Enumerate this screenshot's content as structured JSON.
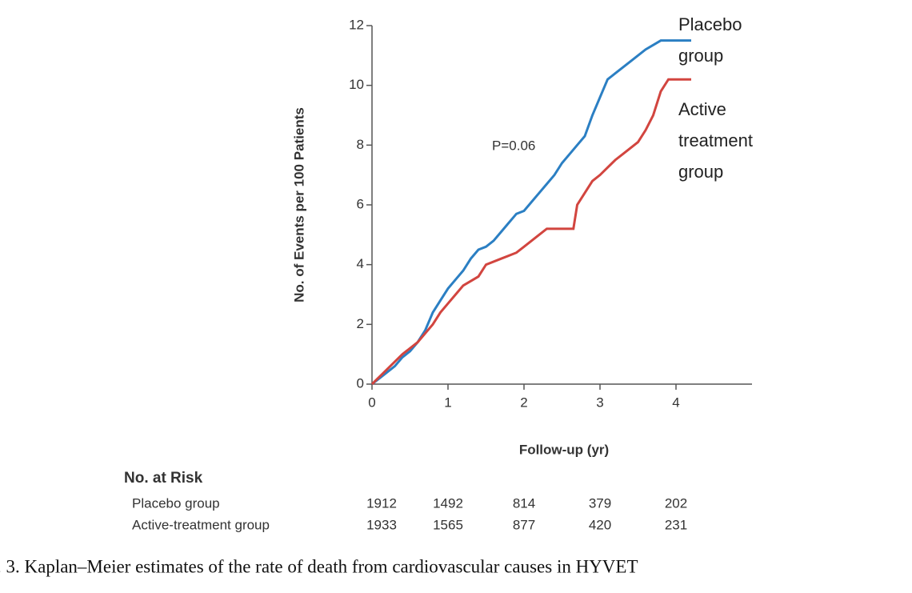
{
  "chart_data": {
    "type": "line",
    "y_label": "No. of Events per 100 Patients",
    "x_label": "Follow-up (yr)",
    "annotation": "P=0.06",
    "xlim": [
      0,
      5
    ],
    "xticks": [
      0,
      1,
      2,
      3,
      4
    ],
    "ylim": [
      0,
      12
    ],
    "yticks": [
      0,
      2,
      4,
      6,
      8,
      10,
      12
    ],
    "series": [
      {
        "name": "Placebo group",
        "color": "#2b7fc3",
        "x": [
          0,
          0.1,
          0.2,
          0.3,
          0.4,
          0.5,
          0.6,
          0.7,
          0.8,
          0.9,
          1.0,
          1.1,
          1.2,
          1.3,
          1.4,
          1.5,
          1.6,
          1.7,
          1.8,
          1.9,
          2.0,
          2.1,
          2.2,
          2.3,
          2.4,
          2.5,
          2.6,
          2.7,
          2.8,
          2.9,
          3.0,
          3.1,
          3.2,
          3.4,
          3.6,
          3.8,
          4.2
        ],
        "values": [
          0,
          0.2,
          0.4,
          0.6,
          0.9,
          1.1,
          1.4,
          1.8,
          2.4,
          2.8,
          3.2,
          3.5,
          3.8,
          4.2,
          4.5,
          4.6,
          4.8,
          5.1,
          5.4,
          5.7,
          5.8,
          6.1,
          6.4,
          6.7,
          7.0,
          7.4,
          7.7,
          8.0,
          8.3,
          9.0,
          9.6,
          10.2,
          10.4,
          10.8,
          11.2,
          11.5,
          11.5
        ]
      },
      {
        "name": "Active treatment group",
        "color": "#d2453f",
        "x": [
          0,
          0.2,
          0.4,
          0.6,
          0.7,
          0.8,
          0.9,
          1.0,
          1.1,
          1.2,
          1.4,
          1.5,
          1.7,
          1.9,
          2.0,
          2.1,
          2.2,
          2.3,
          2.65,
          2.7,
          2.8,
          2.9,
          3.0,
          3.2,
          3.3,
          3.5,
          3.6,
          3.7,
          3.8,
          3.9,
          4.2
        ],
        "values": [
          0,
          0.5,
          1.0,
          1.4,
          1.7,
          2.0,
          2.4,
          2.7,
          3.0,
          3.3,
          3.6,
          4.0,
          4.2,
          4.4,
          4.6,
          4.8,
          5.0,
          5.2,
          5.2,
          6.0,
          6.4,
          6.8,
          7.0,
          7.5,
          7.7,
          8.1,
          8.5,
          9.0,
          9.8,
          10.2,
          10.2
        ]
      }
    ],
    "risk_table": {
      "title": "No. at Risk",
      "rows": [
        {
          "label": "Placebo group",
          "values": [
            1912,
            1492,
            814,
            379,
            202
          ]
        },
        {
          "label": "Active-treatment group",
          "values": [
            1933,
            1565,
            877,
            420,
            231
          ]
        }
      ]
    },
    "caption": ". 3. Kaplan–Meier estimates of the rate of death from cardiovascular causes in HYVET"
  }
}
